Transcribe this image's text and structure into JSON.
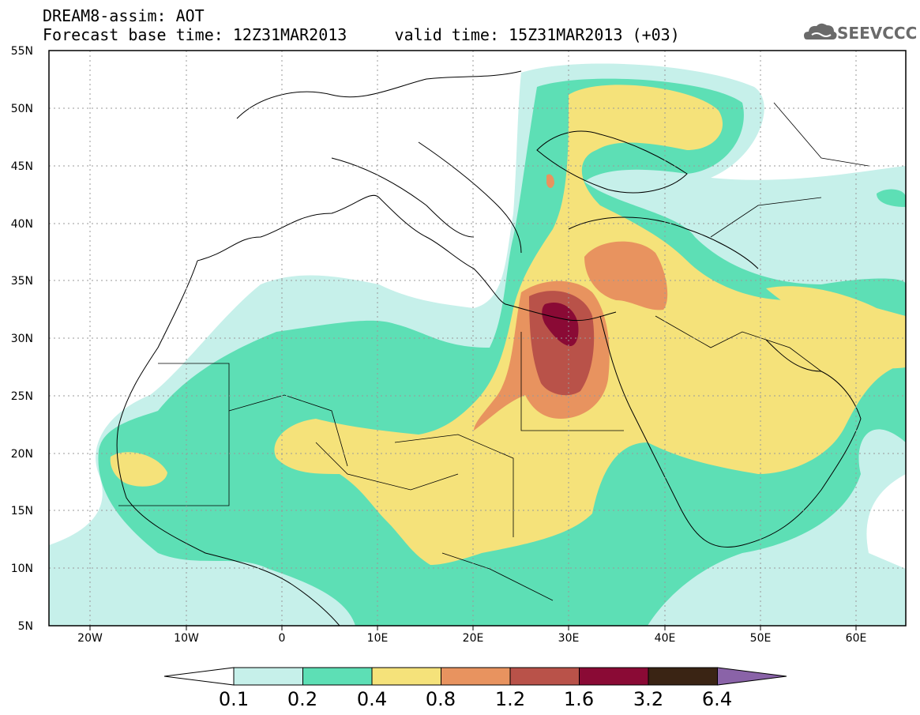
{
  "title_line1": "DREAM8-assim: AOT",
  "title_line2_left": "Forecast base time: 12Z31MAR2013",
  "title_line2_right": "valid time: 15Z31MAR2013 (+03)",
  "logo_text": "SEEVCCC",
  "map": {
    "lon_ticks": [
      "20W",
      "10W",
      "0",
      "10E",
      "20E",
      "30E",
      "40E",
      "50E",
      "60E"
    ],
    "lat_ticks": [
      "55N",
      "50N",
      "45N",
      "40N",
      "35N",
      "30N",
      "25N",
      "20N",
      "15N",
      "10N",
      "5N"
    ],
    "lon_range": [
      -25,
      65
    ],
    "lat_range": [
      5,
      55
    ]
  },
  "colorbar": {
    "labels": [
      "0.1",
      "0.2",
      "0.4",
      "0.8",
      "1.2",
      "1.6",
      "3.2",
      "6.4"
    ],
    "colors": [
      "#c6f0ea",
      "#5ddfb5",
      "#f5e27a",
      "#e8935f",
      "#b95249",
      "#8a0a35",
      "#3a2414",
      "#8a63a8"
    ]
  }
}
